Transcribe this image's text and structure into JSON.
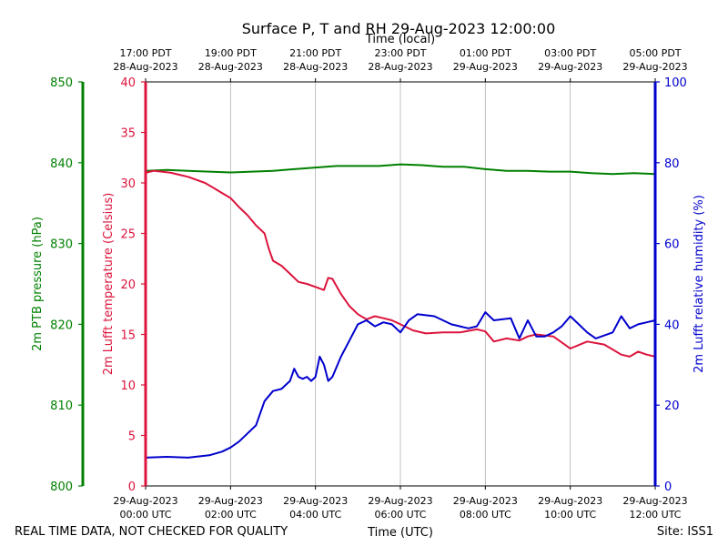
{
  "chart_data": {
    "type": "line",
    "title": "Surface P, T and RH 29-Aug-2023 12:00:00",
    "top_axis_label": "Time (local)",
    "top_ticks": [
      {
        "hour": 0,
        "line1": "17:00 PDT",
        "line2": "28-Aug-2023"
      },
      {
        "hour": 2,
        "line1": "19:00 PDT",
        "line2": "28-Aug-2023"
      },
      {
        "hour": 4,
        "line1": "21:00 PDT",
        "line2": "28-Aug-2023"
      },
      {
        "hour": 6,
        "line1": "23:00 PDT",
        "line2": "28-Aug-2023"
      },
      {
        "hour": 8,
        "line1": "01:00 PDT",
        "line2": "29-Aug-2023"
      },
      {
        "hour": 10,
        "line1": "03:00 PDT",
        "line2": "29-Aug-2023"
      },
      {
        "hour": 12,
        "line1": "05:00 PDT",
        "line2": "29-Aug-2023"
      }
    ],
    "bottom_axis_label": "Time (UTC)",
    "bottom_ticks": [
      {
        "hour": 0,
        "line1": "29-Aug-2023",
        "line2": "00:00 UTC"
      },
      {
        "hour": 2,
        "line1": "29-Aug-2023",
        "line2": "02:00 UTC"
      },
      {
        "hour": 4,
        "line1": "29-Aug-2023",
        "line2": "04:00 UTC"
      },
      {
        "hour": 6,
        "line1": "29-Aug-2023",
        "line2": "06:00 UTC"
      },
      {
        "hour": 8,
        "line1": "29-Aug-2023",
        "line2": "08:00 UTC"
      },
      {
        "hour": 10,
        "line1": "29-Aug-2023",
        "line2": "10:00 UTC"
      },
      {
        "hour": 12,
        "line1": "29-Aug-2023",
        "line2": "12:00 UTC"
      }
    ],
    "xlim_hours": [
      0,
      12
    ],
    "grid_x": true,
    "footer_left": "REAL TIME DATA, NOT CHECKED FOR QUALITY",
    "footer_right": "Site: ISS1",
    "axes": {
      "pressure": {
        "label": "2m PTB pressure (hPa)",
        "color": "#008000",
        "lim": [
          800,
          850
        ],
        "ticks": [
          "800",
          "810",
          "820",
          "830",
          "840",
          "850"
        ]
      },
      "temperature": {
        "label": "2m Lufft temperature (Celsius)",
        "color": "#dc143c",
        "lim": [
          0,
          40
        ],
        "ticks": [
          "0",
          "5",
          "10",
          "15",
          "20",
          "25",
          "30",
          "35",
          "40"
        ]
      },
      "humidity": {
        "label": "2m Lufft relative humidity (%)",
        "color": "#0000cd",
        "lim": [
          0,
          100
        ],
        "ticks": [
          "0",
          "20",
          "40",
          "60",
          "80",
          "100"
        ]
      }
    },
    "series": [
      {
        "axis": "pressure",
        "x": [
          0,
          0.5,
          1,
          1.5,
          2,
          2.5,
          3,
          3.5,
          4,
          4.5,
          5,
          5.5,
          6,
          6.5,
          7,
          7.5,
          8,
          8.5,
          9,
          9.5,
          10,
          10.5,
          11,
          11.5,
          12
        ],
        "y": [
          839.0,
          839.1,
          839.0,
          838.9,
          838.8,
          838.9,
          839.0,
          839.2,
          839.4,
          839.6,
          839.6,
          839.6,
          839.8,
          839.7,
          839.5,
          839.5,
          839.2,
          839.0,
          839.0,
          838.9,
          838.9,
          838.7,
          838.6,
          838.7,
          838.6
        ]
      },
      {
        "axis": "temperature",
        "x": [
          0,
          0.2,
          0.4,
          0.6,
          0.8,
          1.0,
          1.2,
          1.4,
          1.6,
          1.8,
          2.0,
          2.2,
          2.4,
          2.6,
          2.8,
          2.9,
          3.0,
          3.2,
          3.4,
          3.6,
          3.8,
          4.0,
          4.2,
          4.3,
          4.4,
          4.6,
          4.8,
          5.0,
          5.2,
          5.4,
          5.6,
          5.8,
          6.0,
          6.3,
          6.6,
          7.0,
          7.4,
          7.8,
          8.0,
          8.2,
          8.5,
          8.8,
          9.0,
          9.2,
          9.6,
          10.0,
          10.4,
          10.8,
          11.0,
          11.2,
          11.4,
          11.6,
          11.8,
          12.0
        ],
        "y": [
          31.0,
          31.2,
          31.1,
          31.0,
          30.8,
          30.6,
          30.3,
          30.0,
          29.5,
          29.0,
          28.5,
          27.6,
          26.8,
          25.8,
          25.0,
          23.5,
          22.3,
          21.8,
          21.0,
          20.2,
          20.0,
          19.7,
          19.4,
          20.6,
          20.5,
          19.0,
          17.8,
          17.0,
          16.5,
          16.8,
          16.6,
          16.4,
          16.0,
          15.4,
          15.1,
          15.2,
          15.2,
          15.5,
          15.3,
          14.3,
          14.6,
          14.4,
          14.8,
          15.0,
          14.8,
          13.6,
          14.3,
          14.0,
          13.5,
          13.0,
          12.8,
          13.3,
          13.0,
          12.8
        ]
      },
      {
        "axis": "humidity",
        "x": [
          0,
          0.5,
          1.0,
          1.5,
          1.8,
          2.0,
          2.2,
          2.4,
          2.6,
          2.8,
          3.0,
          3.2,
          3.4,
          3.5,
          3.6,
          3.7,
          3.8,
          3.9,
          4.0,
          4.1,
          4.2,
          4.3,
          4.4,
          4.6,
          4.8,
          5.0,
          5.2,
          5.4,
          5.6,
          5.8,
          6.0,
          6.2,
          6.4,
          6.8,
          7.2,
          7.6,
          7.8,
          8.0,
          8.2,
          8.6,
          8.8,
          9.0,
          9.2,
          9.4,
          9.6,
          9.8,
          10.0,
          10.2,
          10.4,
          10.6,
          11.0,
          11.2,
          11.4,
          11.6,
          11.8,
          12.0
        ],
        "y": [
          7.0,
          7.2,
          7.0,
          7.6,
          8.5,
          9.5,
          11.0,
          13.0,
          15.0,
          21.0,
          23.5,
          24.0,
          26.0,
          29.0,
          27.0,
          26.5,
          27.0,
          26.0,
          27.0,
          32.0,
          30.0,
          26.0,
          27.0,
          32.0,
          36.0,
          40.0,
          41.0,
          39.5,
          40.5,
          40.0,
          38.0,
          41.0,
          42.5,
          42.0,
          40.0,
          39.0,
          39.5,
          43.0,
          41.0,
          41.5,
          36.5,
          41.0,
          37.0,
          37.0,
          38.0,
          39.5,
          42.0,
          40.0,
          38.0,
          36.5,
          38.0,
          42.0,
          39.0,
          40.0,
          40.5,
          41.0
        ]
      }
    ]
  }
}
